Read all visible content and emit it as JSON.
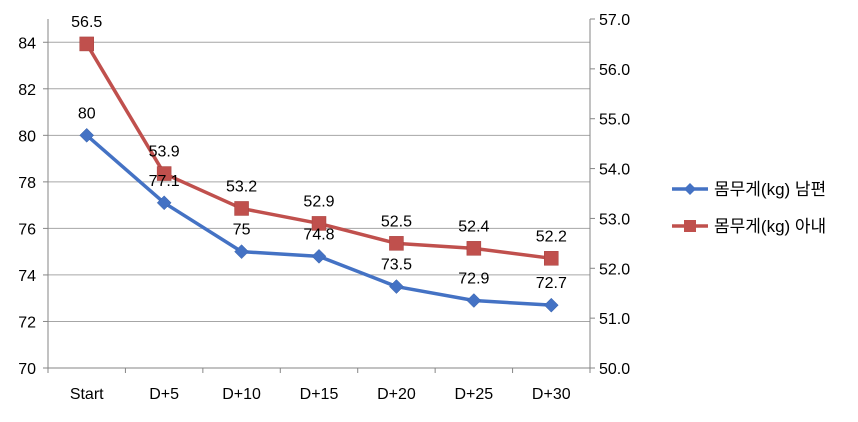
{
  "chart_data": {
    "type": "line",
    "categories": [
      "Start",
      "D+5",
      "D+10",
      "D+15",
      "D+20",
      "D+25",
      "D+30"
    ],
    "series": [
      {
        "name": "몸무게(kg) 남편",
        "axis": "left",
        "color": "#4472C4",
        "marker": "diamond",
        "values": [
          80,
          77.1,
          75,
          74.8,
          73.5,
          72.9,
          72.7
        ],
        "labels": [
          "80",
          "77.1",
          "75",
          "74.8",
          "73.5",
          "72.9",
          "72.7"
        ]
      },
      {
        "name": "몸무게(kg) 아내",
        "axis": "right",
        "color": "#C0504D",
        "marker": "square",
        "values": [
          56.5,
          53.9,
          53.2,
          52.9,
          52.5,
          52.4,
          52.2
        ],
        "labels": [
          "56.5",
          "53.9",
          "53.2",
          "52.9",
          "52.5",
          "52.4",
          "52.2"
        ]
      }
    ],
    "y_left": {
      "min": 70,
      "max": 85,
      "ticks": [
        "70",
        "72",
        "74",
        "76",
        "78",
        "80",
        "82",
        "84"
      ]
    },
    "y_right": {
      "min": 50,
      "max": 57,
      "ticks": [
        "50.0",
        "51.0",
        "52.0",
        "53.0",
        "54.0",
        "55.0",
        "56.0",
        "57.0"
      ]
    },
    "grid": true,
    "legend": "right"
  }
}
